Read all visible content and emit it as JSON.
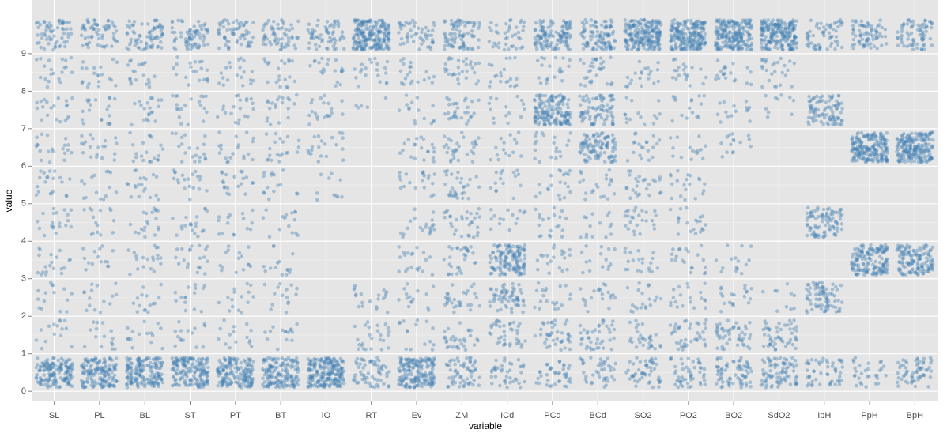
{
  "chart_data": {
    "type": "jitter",
    "color": "#4682b4",
    "x_label": "variable",
    "y_label": "value",
    "categories": [
      "SL",
      "PL",
      "BL",
      "ST",
      "PT",
      "BT",
      "IO",
      "RT",
      "Ev",
      "ZM",
      "ICd",
      "PCd",
      "BCd",
      "SO2",
      "PO2",
      "BO2",
      "SdO2",
      "IpH",
      "PpH",
      "BpH"
    ],
    "bins": [
      0,
      1,
      2,
      3,
      4,
      5,
      6,
      7,
      8,
      9,
      10
    ],
    "counts": [
      [
        150,
        15,
        15,
        20,
        20,
        20,
        20,
        20,
        20,
        60
      ],
      [
        150,
        15,
        15,
        15,
        15,
        15,
        20,
        20,
        20,
        60
      ],
      [
        160,
        15,
        15,
        20,
        20,
        20,
        20,
        20,
        20,
        70
      ],
      [
        160,
        15,
        15,
        20,
        20,
        20,
        20,
        20,
        20,
        70
      ],
      [
        160,
        15,
        15,
        15,
        15,
        20,
        20,
        20,
        20,
        60
      ],
      [
        150,
        15,
        15,
        15,
        15,
        15,
        20,
        20,
        20,
        60
      ],
      [
        200,
        0,
        0,
        0,
        0,
        10,
        20,
        20,
        20,
        60
      ],
      [
        60,
        25,
        20,
        0,
        0,
        0,
        0,
        5,
        20,
        200
      ],
      [
        170,
        15,
        15,
        20,
        20,
        20,
        20,
        15,
        20,
        50
      ],
      [
        60,
        30,
        30,
        30,
        30,
        30,
        30,
        30,
        30,
        80
      ],
      [
        40,
        40,
        60,
        130,
        15,
        15,
        15,
        15,
        20,
        40
      ],
      [
        40,
        40,
        20,
        20,
        20,
        20,
        20,
        150,
        20,
        120
      ],
      [
        40,
        40,
        20,
        15,
        15,
        20,
        100,
        80,
        30,
        100
      ],
      [
        50,
        30,
        20,
        20,
        25,
        25,
        20,
        15,
        20,
        200
      ],
      [
        50,
        40,
        20,
        20,
        20,
        20,
        15,
        15,
        20,
        200
      ],
      [
        70,
        50,
        20,
        15,
        0,
        0,
        15,
        15,
        20,
        200
      ],
      [
        80,
        50,
        10,
        0,
        0,
        0,
        0,
        10,
        25,
        200
      ],
      [
        50,
        0,
        80,
        0,
        90,
        0,
        0,
        90,
        0,
        60
      ],
      [
        30,
        0,
        0,
        150,
        0,
        0,
        200,
        0,
        0,
        70
      ],
      [
        60,
        0,
        0,
        130,
        0,
        0,
        200,
        0,
        0,
        70
      ]
    ],
    "ylim": [
      -0.27,
      10.43
    ],
    "yticks": [
      0,
      1,
      2,
      3,
      4,
      5,
      6,
      7,
      8,
      9
    ],
    "grid": true
  }
}
